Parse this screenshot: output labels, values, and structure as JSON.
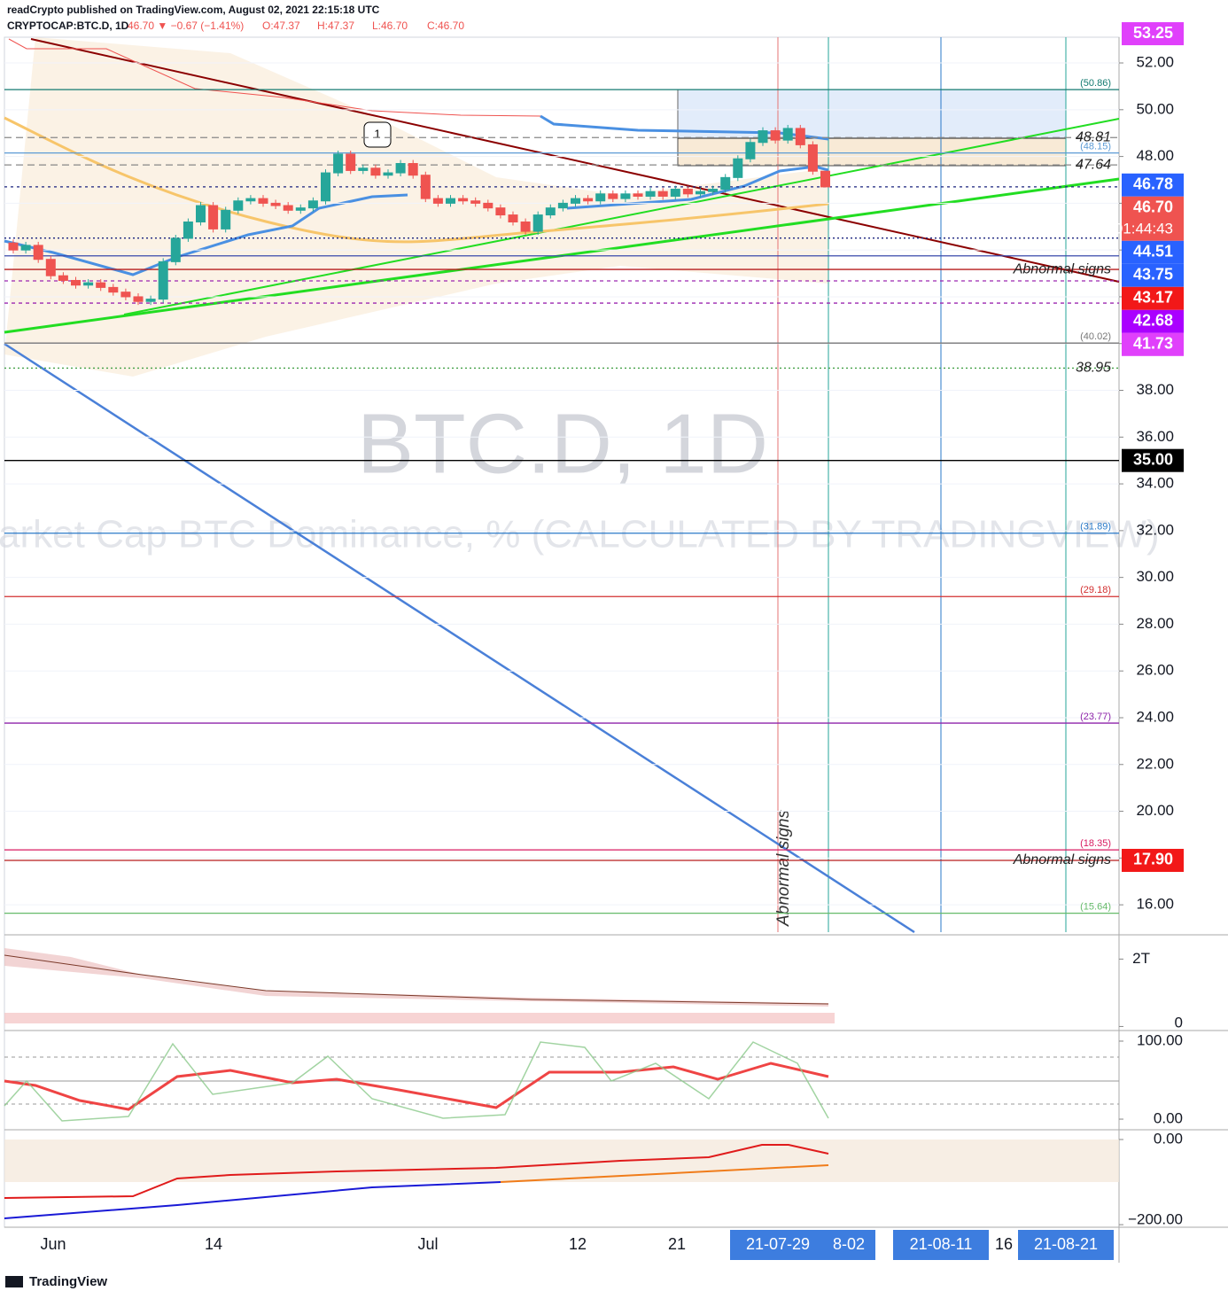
{
  "chart_data": {
    "type": "candlestick",
    "header": {
      "publisher": "readCrypto published on TradingView.com, August 02, 2021 22:15:18 UTC",
      "symbol": "CRYPTOCAP:BTC.D, 1D",
      "change": "46.70 ▼ −0.67 (−1.41%)",
      "ohlc": [
        "O:47.37",
        "H:47.37",
        "L:46.70",
        "C:46.70"
      ]
    },
    "watermark": {
      "symbol": "BTC.D, 1D",
      "description": "Market Cap BTC Dominance, % (CALCULATED BY TRADINGVIEW)"
    },
    "open": [
      44.3,
      44.0,
      44.2,
      43.6,
      42.9,
      42.7,
      42.5,
      42.6,
      42.4,
      42.2,
      42.0,
      41.8,
      41.9,
      43.5,
      44.5,
      45.2,
      45.9,
      44.9,
      45.7,
      46.1,
      46.2,
      46.0,
      45.9,
      45.7,
      45.8,
      46.1,
      47.3,
      48.1,
      47.4,
      47.5,
      47.2,
      47.3,
      47.7,
      47.2,
      46.2,
      46.0,
      46.2,
      46.1,
      46.0,
      45.8,
      45.5,
      45.2,
      44.8,
      45.5,
      45.8,
      46.0,
      46.2,
      46.1,
      46.4,
      46.2,
      46.4,
      46.3,
      46.5,
      46.3,
      46.6,
      46.4,
      46.5,
      46.6,
      47.1,
      47.9,
      48.6,
      49.1,
      48.7,
      49.2,
      48.5,
      47.37
    ],
    "high": [
      44.45,
      44.35,
      44.35,
      43.75,
      43.05,
      42.85,
      42.75,
      42.75,
      42.55,
      42.35,
      42.15,
      42.05,
      43.65,
      44.65,
      45.35,
      46.05,
      46.05,
      45.85,
      46.25,
      46.35,
      46.35,
      46.15,
      46.05,
      45.95,
      46.25,
      47.45,
      48.25,
      48.25,
      47.65,
      47.65,
      47.45,
      47.85,
      47.85,
      47.35,
      46.35,
      46.35,
      46.35,
      46.25,
      46.15,
      45.95,
      45.65,
      45.35,
      45.65,
      45.95,
      46.15,
      46.35,
      46.35,
      46.55,
      46.55,
      46.55,
      46.55,
      46.65,
      46.65,
      46.75,
      46.75,
      46.65,
      46.75,
      47.25,
      48.05,
      48.75,
      49.25,
      49.25,
      49.35,
      49.35,
      48.65,
      47.37
    ],
    "low": [
      43.85,
      43.85,
      43.45,
      42.75,
      42.55,
      42.35,
      42.35,
      42.25,
      42.05,
      41.85,
      41.65,
      41.65,
      41.75,
      43.35,
      44.35,
      45.05,
      44.75,
      44.75,
      45.55,
      45.95,
      45.85,
      45.75,
      45.55,
      45.55,
      45.65,
      45.95,
      47.15,
      47.25,
      47.25,
      47.05,
      47.05,
      47.15,
      47.05,
      46.05,
      45.85,
      45.85,
      45.95,
      45.85,
      45.65,
      45.35,
      45.05,
      44.65,
      44.65,
      45.35,
      45.65,
      45.85,
      45.95,
      45.95,
      46.05,
      46.05,
      46.15,
      46.15,
      46.15,
      46.15,
      46.25,
      46.25,
      46.35,
      46.45,
      46.95,
      47.75,
      48.45,
      48.55,
      48.55,
      48.35,
      47.22,
      46.7
    ],
    "close": [
      44.0,
      44.2,
      43.6,
      42.9,
      42.7,
      42.5,
      42.6,
      42.4,
      42.2,
      42.0,
      41.8,
      41.9,
      43.5,
      44.5,
      45.2,
      45.9,
      44.9,
      45.7,
      46.1,
      46.2,
      46.0,
      45.9,
      45.7,
      45.8,
      46.1,
      47.3,
      48.1,
      47.4,
      47.5,
      47.2,
      47.3,
      47.7,
      47.2,
      46.2,
      46.0,
      46.2,
      46.1,
      46.0,
      45.8,
      45.5,
      45.2,
      44.8,
      45.5,
      45.8,
      46.0,
      46.2,
      46.1,
      46.4,
      46.2,
      46.4,
      46.3,
      46.5,
      46.3,
      46.6,
      46.4,
      46.5,
      46.6,
      47.1,
      47.9,
      48.6,
      49.1,
      48.7,
      49.2,
      48.5,
      47.37,
      46.7
    ],
    "up_color": "#26a69a",
    "down_color": "#ef5350",
    "ylim": [
      14.83,
      53.1
    ],
    "yticks": [
      {
        "value": 16,
        "label": "16.00"
      },
      {
        "value": 18,
        "label": "18.00"
      },
      {
        "value": 20,
        "label": "20.00"
      },
      {
        "value": 22,
        "label": "22.00"
      },
      {
        "value": 24,
        "label": "24.00"
      },
      {
        "value": 26,
        "label": "26.00"
      },
      {
        "value": 28,
        "label": "28.00"
      },
      {
        "value": 30,
        "label": "30.00"
      },
      {
        "value": 32,
        "label": "32.00"
      },
      {
        "value": 34,
        "label": "34.00"
      },
      {
        "value": 36,
        "label": "36.00"
      },
      {
        "value": 38,
        "label": "38.00"
      },
      {
        "value": 40,
        "label": "40.00"
      },
      {
        "value": 42,
        "label": "42.00"
      },
      {
        "value": 44,
        "label": "44.00"
      },
      {
        "value": 46,
        "label": "46.00"
      },
      {
        "value": 48,
        "label": "48.00"
      },
      {
        "value": 50,
        "label": "50.00"
      },
      {
        "value": 52,
        "label": "52.00"
      }
    ],
    "levels": [
      {
        "value": 50.86,
        "label": "(50.86)",
        "color": "#137a70",
        "dash": "",
        "small": true
      },
      {
        "value": 48.81,
        "label": "48.81",
        "color": "#888888",
        "dash": "8 5",
        "small": false
      },
      {
        "value": 48.15,
        "label": "(48.15)",
        "color": "#5b9bd5",
        "dash": "",
        "small": true
      },
      {
        "value": 47.64,
        "label": "47.64",
        "color": "#888888",
        "dash": "8 5",
        "small": false
      },
      {
        "value": 46.7,
        "color": "#1a237e",
        "dash": "3 4"
      },
      {
        "value": 44.51,
        "color": "#1a237e",
        "dash": "2 3"
      },
      {
        "value": 43.75,
        "color": "#3949ab",
        "dash": ""
      },
      {
        "value": 43.17,
        "label": "Abnormal signs",
        "color": "#b71c1c",
        "dash": "",
        "small": false
      },
      {
        "value": 42.68,
        "color": "#9c27b0",
        "dash": "4 4"
      },
      {
        "value": 41.73,
        "color": "#9c27b0",
        "dash": "4 4"
      },
      {
        "value": 40.02,
        "label": "(40.02)",
        "color": "#777777",
        "dash": "",
        "small": true
      },
      {
        "value": 38.95,
        "label": "38.95",
        "color": "#43a047",
        "dash": "2 3",
        "small": false
      },
      {
        "value": 35.0,
        "color": "#000000",
        "dash": ""
      },
      {
        "value": 31.89,
        "label": "(31.89)",
        "color": "#2979c8",
        "dash": "",
        "small": true
      },
      {
        "value": 29.18,
        "label": "(29.18)",
        "color": "#d32f2f",
        "dash": "",
        "small": true
      },
      {
        "value": 23.77,
        "label": "(23.77)",
        "color": "#8e24aa",
        "dash": "",
        "small": true
      },
      {
        "value": 18.35,
        "label": "(18.35)",
        "color": "#d81b60",
        "dash": "",
        "small": true
      },
      {
        "value": 17.9,
        "label": "Abnormal signs",
        "color": "#b71c1c",
        "dash": "",
        "small": false
      },
      {
        "value": 15.64,
        "label": "(15.64)",
        "color": "#66bb6a",
        "dash": "",
        "small": true
      }
    ],
    "tags": [
      {
        "value": 53.25,
        "label": "53.25",
        "color": "#e040fb"
      },
      {
        "value": 46.78,
        "label": "46.78",
        "color": "#2962ff"
      },
      {
        "value": 46.7,
        "label": "46.70",
        "countdown": "01:44:43",
        "color": "#ef5350"
      },
      {
        "value": 44.51,
        "label": "44.51",
        "color": "#2962ff"
      },
      {
        "value": 43.75,
        "label": "43.75",
        "color": "#2962ff"
      },
      {
        "value": 43.17,
        "label": "43.17",
        "color": "#f21818"
      },
      {
        "value": 42.68,
        "label": "42.68",
        "color": "#aa00ff"
      },
      {
        "value": 41.73,
        "label": "41.73",
        "color": "#e040fb"
      },
      {
        "value": 35.0,
        "label": "35.00",
        "color": "#000000"
      },
      {
        "value": 17.9,
        "label": "17.90",
        "color": "#f21818"
      }
    ],
    "annotations": {
      "vertical": "Abnormal signs",
      "callout": "1"
    },
    "time_axis": [
      "Jun",
      "14",
      "Jul",
      "12",
      "21",
      "21-07-29",
      "8-02",
      "21-08-11",
      "16",
      "21-08-21"
    ],
    "panes": [
      {
        "ylim": [
          -120000000000,
          2720000000000
        ],
        "yticks": [
          {
            "value": 2000000000000,
            "label": "2T"
          },
          0
        ]
      },
      {
        "ylim": [
          -13.6,
          113.6
        ],
        "yticks": [
          {
            "value": 100,
            "label": "100.00"
          },
          {
            "value": 0,
            "label": "0.00"
          }
        ]
      },
      {
        "ylim": [
          -206,
          22.9
        ],
        "yticks": [
          {
            "value": 0,
            "label": "0.00"
          },
          {
            "value": -200,
            "label": "−200.00"
          }
        ]
      }
    ],
    "brand": "TradingView"
  }
}
